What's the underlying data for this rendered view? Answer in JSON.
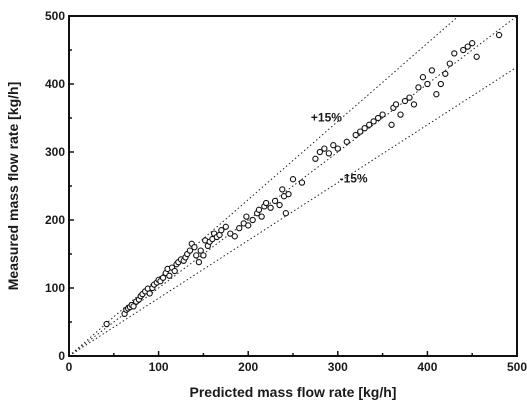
{
  "chart_data": {
    "type": "scatter",
    "xlabel": "Predicted mass flow rate [kg/h]",
    "ylabel": "Measured mass flow rate [kg/h]",
    "xlim": [
      0,
      500
    ],
    "ylim": [
      0,
      500
    ],
    "xticks": [
      "0",
      "100",
      "200",
      "300",
      "400",
      "500"
    ],
    "yticks": [
      "0",
      "100",
      "200",
      "300",
      "400",
      "500"
    ],
    "grid": false,
    "reference_lines": [
      {
        "label": "",
        "slope": 1.0
      },
      {
        "label": "+15%",
        "slope": 1.15
      },
      {
        "label": "-15%",
        "slope": 0.85
      }
    ],
    "annotations": [
      {
        "text": "+15%",
        "x": 270,
        "y": 345
      },
      {
        "text": "-15%",
        "x": 302,
        "y": 255
      }
    ],
    "series": [
      {
        "x": [
          42,
          62,
          64,
          66,
          68,
          70,
          72,
          75,
          78,
          80,
          82,
          85,
          88,
          90,
          93,
          95,
          98,
          100,
          102,
          105,
          108,
          110,
          112,
          115,
          118,
          120,
          122,
          125,
          128,
          130,
          132,
          135,
          137,
          140,
          142,
          145,
          147,
          150,
          152,
          155,
          157,
          160,
          162,
          165,
          168,
          170,
          175,
          180,
          185,
          190,
          195,
          198,
          200,
          205,
          210,
          212,
          215,
          218,
          220,
          225,
          230,
          235,
          238,
          240,
          242,
          245,
          250,
          260,
          275,
          280,
          285,
          290,
          295,
          300,
          310,
          320,
          325,
          330,
          335,
          340,
          345,
          350,
          360,
          362,
          365,
          370,
          375,
          380,
          385,
          390,
          395,
          400,
          405,
          410,
          415,
          420,
          425,
          430,
          440,
          445,
          450,
          455,
          480
        ],
        "y": [
          47,
          62,
          68,
          70,
          72,
          75,
          73,
          80,
          83,
          88,
          91,
          95,
          99,
          92,
          100,
          105,
          108,
          112,
          110,
          115,
          122,
          128,
          118,
          130,
          125,
          135,
          138,
          142,
          140,
          145,
          150,
          155,
          165,
          160,
          148,
          138,
          155,
          148,
          170,
          162,
          168,
          172,
          180,
          175,
          178,
          185,
          190,
          180,
          176,
          188,
          195,
          205,
          192,
          200,
          210,
          215,
          205,
          220,
          225,
          218,
          228,
          222,
          245,
          235,
          210,
          238,
          260,
          255,
          290,
          300,
          305,
          298,
          310,
          305,
          315,
          325,
          330,
          335,
          340,
          345,
          350,
          355,
          340,
          365,
          370,
          355,
          375,
          380,
          370,
          395,
          410,
          400,
          420,
          385,
          400,
          415,
          430,
          445,
          450,
          455,
          460,
          440,
          472
        ]
      }
    ]
  }
}
